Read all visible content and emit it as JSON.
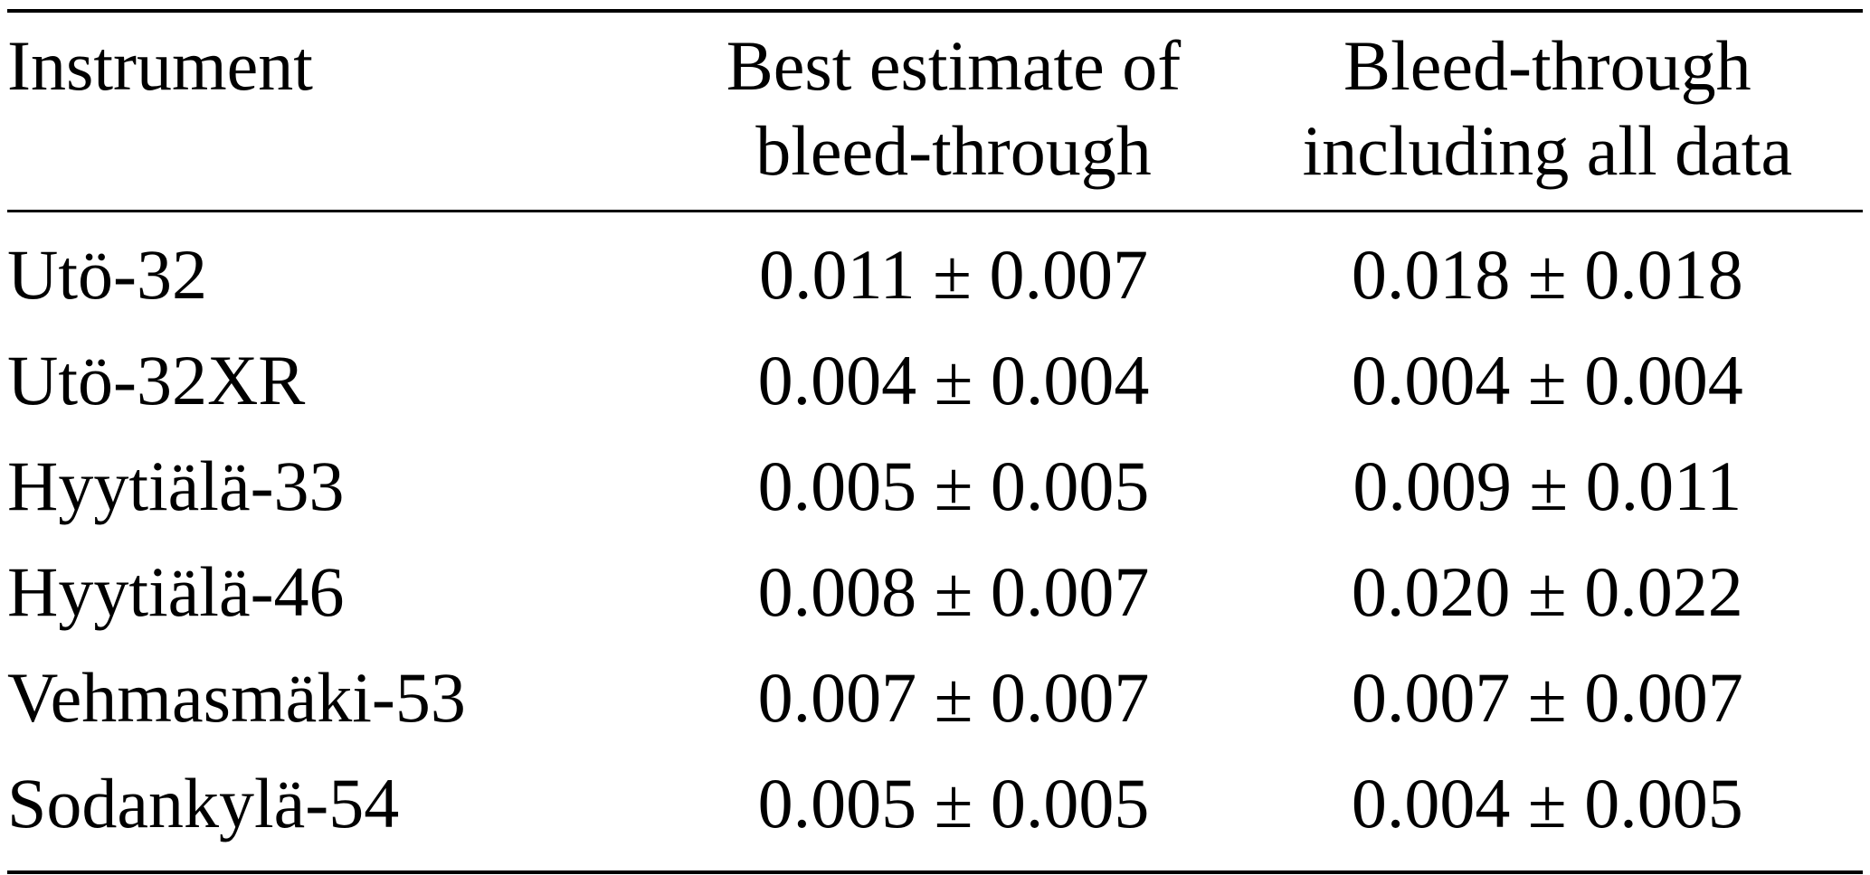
{
  "table": {
    "headers": {
      "col1": {
        "line1": "Instrument",
        "line2": ""
      },
      "col2": {
        "line1": "Best estimate of",
        "line2": "bleed-through"
      },
      "col3": {
        "line1": "Bleed-through",
        "line2": "including all data"
      }
    },
    "rows": [
      {
        "instrument": "Utö-32",
        "best_estimate": "0.011 ± 0.007",
        "all_data": "0.018 ± 0.018"
      },
      {
        "instrument": "Utö-32XR",
        "best_estimate": "0.004 ± 0.004",
        "all_data": "0.004 ± 0.004"
      },
      {
        "instrument": "Hyytiälä-33",
        "best_estimate": "0.005 ± 0.005",
        "all_data": "0.009 ± 0.011"
      },
      {
        "instrument": "Hyytiälä-46",
        "best_estimate": "0.008 ± 0.007",
        "all_data": "0.020 ± 0.022"
      },
      {
        "instrument": "Vehmasmäki-53",
        "best_estimate": "0.007 ± 0.007",
        "all_data": "0.007 ± 0.007"
      },
      {
        "instrument": "Sodankylä-54",
        "best_estimate": "0.005 ± 0.005",
        "all_data": "0.004 ± 0.005"
      }
    ]
  }
}
